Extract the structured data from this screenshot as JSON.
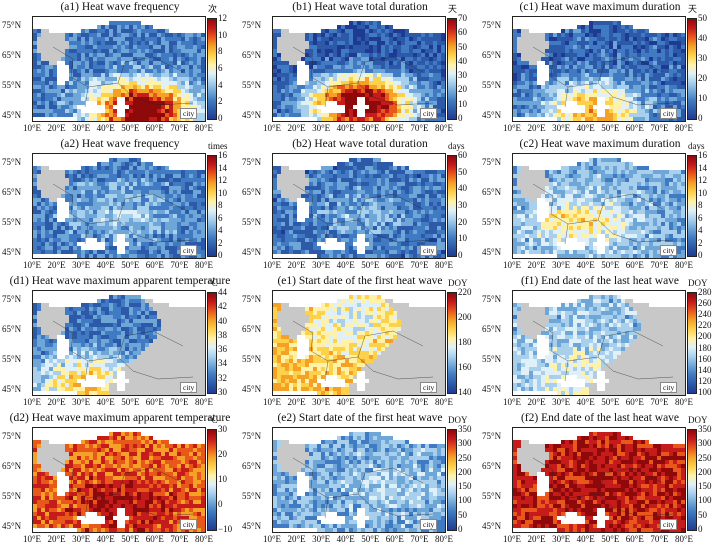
{
  "lat_labels": [
    "75°N",
    "65°N",
    "55°N",
    "45°N"
  ],
  "lon_labels": [
    "10°E",
    "20°E",
    "30°E",
    "40°E",
    "50°E",
    "60°E",
    "70°E",
    "80°E"
  ],
  "legend_label": "city",
  "colors": {
    "land_no_data": "#c8c8c8",
    "water": "#ffffff",
    "border": "#222222"
  },
  "panels": [
    {
      "id": "a1",
      "title": "(a1) Heat wave frequency",
      "unit": "次",
      "ticks": [
        "0",
        "2",
        "4",
        "6",
        "8",
        "10",
        "12"
      ],
      "palette": "blue-red",
      "pattern": {
        "base": 0.2,
        "south_boost": 0.85,
        "hot_x": 0.62,
        "hot_y": 0.88,
        "grey_east": false
      }
    },
    {
      "id": "b1",
      "title": "(b1) Heat wave total duration",
      "unit": "天",
      "ticks": [
        "0",
        "10",
        "20",
        "30",
        "40",
        "50",
        "60",
        "70"
      ],
      "palette": "blue-red",
      "pattern": {
        "base": 0.12,
        "south_boost": 0.95,
        "hot_x": 0.5,
        "hot_y": 0.82,
        "grey_east": false
      }
    },
    {
      "id": "c1",
      "title": "(c1) Heat wave maximum duration",
      "unit": "天",
      "ticks": [
        "0",
        "10",
        "20",
        "30",
        "40",
        "50"
      ],
      "palette": "blue-red",
      "pattern": {
        "base": 0.15,
        "south_boost": 0.55,
        "hot_x": 0.45,
        "hot_y": 0.88,
        "grey_east": false
      }
    },
    {
      "id": "a2",
      "title": "(a2) Heat wave frequency",
      "unit": "times",
      "ticks": [
        "0",
        "2",
        "4",
        "6",
        "8",
        "10",
        "12",
        "14",
        "16"
      ],
      "palette": "blue-red",
      "pattern": {
        "base": 0.2,
        "south_boost": 0.2,
        "hot_x": 0.5,
        "hot_y": 0.5,
        "grey_east": false
      }
    },
    {
      "id": "b2",
      "title": "(b2) Heat wave total duration",
      "unit": "days",
      "ticks": [
        "0",
        "10",
        "20",
        "30",
        "40",
        "50",
        "60"
      ],
      "palette": "blue-red",
      "pattern": {
        "base": 0.18,
        "south_boost": 0.15,
        "hot_x": 0.5,
        "hot_y": 0.5,
        "grey_east": false
      }
    },
    {
      "id": "c2",
      "title": "(c2) Heat wave maximum duration",
      "unit": "days",
      "ticks": [
        "0",
        "2",
        "4",
        "6",
        "8",
        "10",
        "12",
        "14",
        "16"
      ],
      "palette": "blue-red",
      "pattern": {
        "base": 0.3,
        "south_boost": 0.3,
        "hot_x": 0.38,
        "hot_y": 0.6,
        "grey_east": false
      }
    },
    {
      "id": "d1",
      "title": "(d1) Heat wave maximum apparent temperature",
      "unit": "°C",
      "ticks": [
        "30",
        "32",
        "34",
        "36",
        "38",
        "40",
        "42",
        "44"
      ],
      "palette": "blue-red",
      "pattern": {
        "base": 0.2,
        "south_boost": 0.45,
        "hot_x": 0.3,
        "hot_y": 0.88,
        "grey_east": true
      }
    },
    {
      "id": "e1",
      "title": "(e1) Start date of the first heat wave",
      "unit": "DOY",
      "ticks": [
        "140",
        "160",
        "180",
        "200",
        "220"
      ],
      "palette": "blue-red",
      "pattern": {
        "base": 0.65,
        "south_boost": -0.3,
        "hot_x": 0.45,
        "hot_y": 0.25,
        "grey_east": true
      }
    },
    {
      "id": "f1",
      "title": "(f1) End date of the last heat wave",
      "unit": "DOY",
      "ticks": [
        "100",
        "120",
        "140",
        "160",
        "180",
        "200",
        "220",
        "240",
        "260",
        "280"
      ],
      "palette": "blue-red",
      "pattern": {
        "base": 0.35,
        "south_boost": 0.15,
        "hot_x": 0.4,
        "hot_y": 0.8,
        "grey_east": true
      }
    },
    {
      "id": "d2",
      "title": "(d2) Heat wave maximum apparent temperature",
      "unit": "°C",
      "ticks": [
        "−10",
        "0",
        "10",
        "20",
        "30"
      ],
      "palette": "blue-red",
      "pattern": {
        "base": 0.78,
        "south_boost": 0.15,
        "hot_x": 0.5,
        "hot_y": 0.7,
        "grey_east": false
      }
    },
    {
      "id": "e2",
      "title": "(e2) Start date of the first heat wave",
      "unit": "DOY",
      "ticks": [
        "0",
        "50",
        "100",
        "150",
        "200",
        "250",
        "300",
        "350"
      ],
      "palette": "blue-red",
      "pattern": {
        "base": 0.3,
        "south_boost": 0.1,
        "hot_x": 0.7,
        "hot_y": 0.5,
        "grey_east": false
      }
    },
    {
      "id": "f2",
      "title": "(f2) End date of the last heat wave",
      "unit": "DOY",
      "ticks": [
        "0",
        "50",
        "100",
        "150",
        "200",
        "250",
        "300",
        "350"
      ],
      "palette": "blue-red",
      "pattern": {
        "base": 0.88,
        "south_boost": 0.05,
        "hot_x": 0.4,
        "hot_y": 0.4,
        "grey_east": false
      }
    }
  ]
}
